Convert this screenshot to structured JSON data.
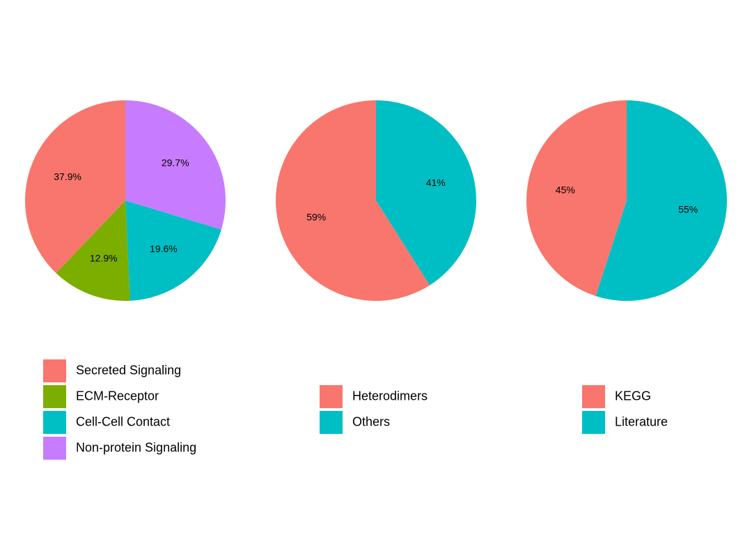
{
  "chart_data": [
    {
      "type": "pie",
      "title": "",
      "categories": [
        "Secreted Signaling",
        "ECM-Receptor",
        "Cell-Cell Contact",
        "Non-protein Signaling"
      ],
      "values": [
        37.9,
        12.9,
        19.6,
        29.7
      ],
      "labels": [
        "37.9%",
        "12.9%",
        "19.6%",
        "29.7%"
      ],
      "colors": [
        "#F8766D",
        "#7CAE00",
        "#00BFC4",
        "#C77CFF"
      ],
      "legend_position": "bottom-left"
    },
    {
      "type": "pie",
      "title": "",
      "categories": [
        "Heterodimers",
        "Others"
      ],
      "values": [
        59,
        41
      ],
      "labels": [
        "59%",
        "41%"
      ],
      "colors": [
        "#F8766D",
        "#00BFC4"
      ],
      "legend_position": "bottom-center"
    },
    {
      "type": "pie",
      "title": "",
      "categories": [
        "KEGG",
        "Literature"
      ],
      "values": [
        45,
        55
      ],
      "labels": [
        "45%",
        "55%"
      ],
      "colors": [
        "#F8766D",
        "#00BFC4"
      ],
      "legend_position": "bottom-right"
    }
  ]
}
